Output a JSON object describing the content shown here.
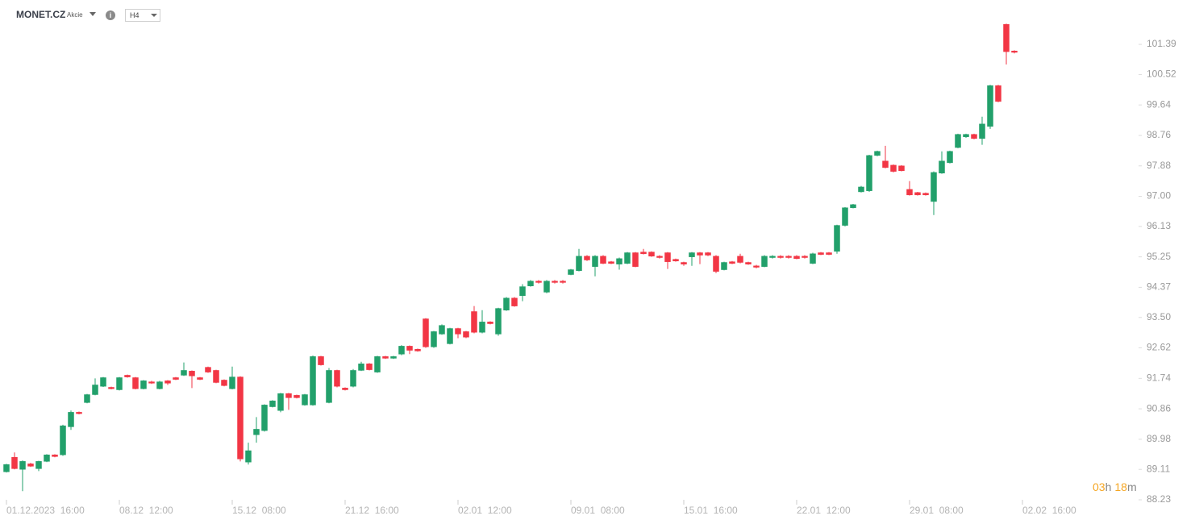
{
  "header": {
    "symbol": "MONET.CZ",
    "market": "Akcie",
    "timeframe": "H4"
  },
  "countdown": {
    "hours": "03",
    "hours_unit": "h",
    "minutes": "18",
    "minutes_unit": "m"
  },
  "chart_data": {
    "type": "candlestick",
    "up_color": "#22a06b",
    "down_color": "#f23645",
    "ylim": [
      88.23,
      102.44
    ],
    "yticks": [
      101.39,
      100.52,
      99.64,
      98.76,
      97.88,
      {
        "value": 97,
        "label": "97.00"
      },
      96.13,
      95.25,
      94.37,
      {
        "value": 93.5,
        "label": "93.50"
      },
      92.62,
      91.74,
      90.86,
      89.98,
      89.11,
      88.23
    ],
    "xlim": [
      -0.8,
      139.2
    ],
    "xticks": [
      {
        "value": 0,
        "label": "01.12.2023  16:00"
      },
      {
        "value": 14,
        "label": "08.12  12:00"
      },
      {
        "value": 28,
        "label": "15.12  08:00"
      },
      {
        "value": 42,
        "label": "21.12  16:00"
      },
      {
        "value": 56,
        "label": "02.01  12:00"
      },
      {
        "value": 70,
        "label": "09.01  08:00"
      },
      {
        "value": 84,
        "label": "15.01  16:00"
      },
      {
        "value": 98,
        "label": "22.01  12:00"
      },
      {
        "value": 112,
        "label": "29.01  08:00"
      },
      {
        "value": 126,
        "label": "02.02  16:00"
      }
    ],
    "open": [
      89.04,
      89.46,
      89.11,
      89.27,
      89.13,
      89.34,
      89.53,
      89.53,
      90.34,
      90.76,
      91.04,
      91.27,
      91.51,
      91.48,
      91.41,
      91.83,
      91.76,
      91.44,
      91.64,
      91.44,
      91.67,
      91.76,
      91.83,
      91.95,
      91.76,
      92.06,
      91.97,
      91.69,
      91.44,
      91.78,
      89.32,
      90.11,
      90.23,
      90.92,
      90.81,
      91.3,
      91.25,
      90.97,
      90.97,
      92.37,
      91.04,
      91.97,
      91.46,
      91.51,
      91.97,
      92.16,
      91.92,
      92.37,
      92.32,
      92.44,
      92.67,
      92.58,
      93.46,
      92.65,
      93.02,
      92.74,
      93.18,
      93.09,
      93.67,
      93.07,
      93.37,
      93.02,
      93.71,
      94.06,
      94.13,
      94.41,
      94.55,
      94.23,
      94.55,
      94.55,
      94.74,
      94.85,
      95.27,
      94.97,
      95.27,
      95.11,
      95.04,
      95.06,
      95.37,
      95.39,
      95.39,
      95.27,
      95.37,
      95.18,
      95.09,
      95.25,
      95.37,
      95.37,
      95.27,
      94.88,
      95.11,
      95.27,
      95.09,
      94.99,
      94.97,
      95.23,
      95.27,
      95.27,
      95.27,
      95.27,
      95.06,
      95.37,
      95.37,
      95.41,
      96.16,
      96.67,
      97.13,
      97.16,
      98.18,
      98.02,
      97.9,
      97.88,
      97.2,
      97.11,
      97.09,
      96.85,
      97.67,
      97.97,
      98.41,
      98.72,
      98.79,
      98.67,
      99.02,
      100.2,
      101.97,
      101.2
    ],
    "high": [
      89.27,
      89.6,
      89.37,
      89.3,
      89.36,
      89.55,
      89.55,
      90.4,
      90.81,
      90.78,
      91.29,
      91.74,
      91.78,
      91.5,
      91.78,
      91.85,
      91.78,
      91.69,
      91.67,
      91.67,
      91.69,
      91.78,
      92.2,
      91.97,
      91.78,
      92.08,
      91.99,
      91.71,
      92.08,
      91.8,
      89.88,
      90.62,
      90.99,
      91.11,
      91.32,
      91.32,
      91.27,
      91.29,
      92.4,
      92.39,
      92.04,
      91.99,
      91.48,
      92.01,
      92.22,
      92.18,
      92.39,
      92.39,
      92.39,
      92.7,
      92.69,
      92.6,
      93.48,
      93.11,
      93.3,
      93.2,
      93.2,
      93.11,
      93.83,
      93.71,
      93.39,
      93.78,
      94.09,
      94.09,
      94.46,
      94.58,
      94.58,
      94.58,
      94.58,
      94.58,
      94.9,
      95.48,
      95.3,
      95.3,
      95.3,
      95.13,
      95.23,
      95.39,
      95.39,
      95.48,
      95.41,
      95.3,
      95.39,
      95.2,
      95.11,
      95.39,
      95.39,
      95.39,
      95.3,
      95.11,
      95.13,
      95.34,
      95.11,
      95.02,
      95.3,
      95.3,
      95.3,
      95.3,
      95.3,
      95.3,
      95.37,
      95.39,
      95.39,
      96.18,
      96.69,
      96.78,
      97.3,
      98.2,
      98.32,
      98.46,
      97.92,
      97.9,
      97.44,
      97.13,
      97.11,
      97.72,
      98.3,
      98.32,
      98.81,
      98.81,
      98.81,
      99.3,
      100.22,
      100.22,
      101.99,
      101.22
    ],
    "low": [
      89.02,
      89.11,
      88.48,
      89.18,
      89.06,
      89.32,
      89.46,
      89.5,
      90.25,
      90.7,
      91.02,
      91.25,
      91.49,
      91.42,
      91.39,
      91.76,
      91.42,
      91.42,
      91.58,
      91.42,
      91.55,
      91.69,
      91.81,
      91.46,
      91.69,
      91.9,
      91.6,
      91.51,
      91.42,
      89.34,
      89.25,
      89.88,
      90.2,
      90.9,
      90.76,
      90.83,
      91.16,
      90.95,
      90.95,
      92.11,
      91.02,
      91.48,
      91.39,
      91.48,
      91.95,
      91.97,
      91.9,
      92.3,
      92.3,
      92.41,
      92.44,
      92.51,
      92.62,
      92.62,
      93.0,
      92.72,
      92.9,
      92.9,
      93.04,
      93.04,
      93.3,
      92.97,
      93.69,
      93.81,
      93.97,
      94.39,
      94.48,
      94.2,
      94.48,
      94.48,
      94.72,
      94.83,
      95.13,
      94.69,
      95.04,
      95.04,
      94.88,
      95.04,
      94.95,
      95.32,
      95.25,
      95.2,
      94.9,
      95.11,
      94.99,
      94.99,
      95.04,
      95.27,
      94.78,
      94.86,
      95.04,
      95.06,
      95.02,
      94.92,
      94.95,
      95.2,
      95.2,
      95.2,
      95.18,
      95.2,
      95.04,
      95.3,
      95.3,
      95.34,
      96.13,
      96.65,
      97.11,
      97.13,
      98.16,
      97.81,
      97.69,
      97.72,
      97.02,
      97.02,
      97.02,
      96.46,
      97.65,
      97.95,
      98.39,
      98.69,
      98.65,
      98.49,
      98.95,
      99.72,
      100.81,
      101.13
    ],
    "close": [
      89.25,
      89.13,
      89.34,
      89.2,
      89.34,
      89.53,
      89.48,
      90.37,
      90.76,
      90.72,
      91.27,
      91.55,
      91.76,
      91.44,
      91.76,
      91.78,
      91.44,
      91.67,
      91.6,
      91.64,
      91.6,
      91.71,
      91.97,
      91.81,
      91.71,
      91.92,
      91.62,
      91.53,
      91.78,
      89.41,
      89.65,
      90.27,
      90.97,
      91.09,
      91.3,
      91.18,
      91.18,
      91.27,
      92.37,
      92.13,
      91.97,
      91.51,
      91.41,
      91.97,
      92.16,
      91.99,
      92.37,
      92.32,
      92.37,
      92.67,
      92.55,
      92.53,
      92.65,
      93.09,
      93.27,
      93.18,
      93.02,
      92.93,
      93.07,
      93.37,
      93.32,
      93.76,
      94.06,
      93.83,
      94.39,
      94.55,
      94.51,
      94.55,
      94.51,
      94.51,
      94.88,
      95.27,
      95.16,
      95.27,
      95.06,
      95.06,
      95.2,
      95.37,
      94.97,
      95.34,
      95.27,
      95.23,
      95.11,
      95.13,
      95.04,
      95.37,
      95.3,
      95.3,
      94.83,
      95.09,
      95.06,
      95.09,
      95.04,
      94.95,
      95.27,
      95.27,
      95.23,
      95.23,
      95.2,
      95.23,
      95.34,
      95.32,
      95.32,
      96.16,
      96.67,
      96.76,
      97.27,
      98.18,
      98.3,
      97.83,
      97.72,
      97.74,
      97.04,
      97.04,
      97.04,
      97.69,
      98.02,
      98.3,
      98.79,
      98.79,
      98.67,
      99.09,
      100.2,
      99.74,
      101.18,
      101.16
    ]
  }
}
